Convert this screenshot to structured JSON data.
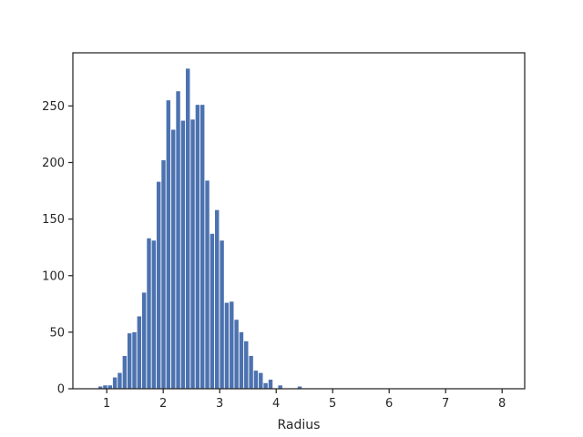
{
  "chart_data": {
    "type": "bar",
    "title": "",
    "xlabel": "Radius",
    "ylabel": "",
    "xlim": [
      0.4,
      8.4
    ],
    "ylim": [
      0,
      297
    ],
    "xticks": [
      1,
      2,
      3,
      4,
      5,
      6,
      7,
      8
    ],
    "yticks": [
      0,
      50,
      100,
      150,
      200,
      250
    ],
    "grid": false,
    "bar_color": "#4c72b0",
    "bin_width": 0.0861,
    "bins_left_edges": [
      0.85,
      0.936,
      1.022,
      1.108,
      1.194,
      1.281,
      1.367,
      1.453,
      1.539,
      1.625,
      1.711,
      1.797,
      1.883,
      1.969,
      2.055,
      2.142,
      2.228,
      2.314,
      2.4,
      2.486,
      2.572,
      2.658,
      2.744,
      2.83,
      2.916,
      3.003,
      3.089,
      3.175,
      3.261,
      3.347,
      3.433,
      3.519,
      3.605,
      3.691,
      3.777,
      3.864,
      3.95,
      4.036,
      4.122,
      4.208,
      4.294,
      4.38,
      4.466,
      4.552,
      4.638,
      4.725,
      4.811,
      4.897,
      4.983
    ],
    "values": [
      2,
      3,
      3,
      10,
      14,
      29,
      49,
      50,
      64,
      85,
      133,
      131,
      183,
      202,
      255,
      229,
      263,
      237,
      283,
      238,
      251,
      251,
      184,
      137,
      158,
      131,
      76,
      77,
      61,
      50,
      42,
      29,
      16,
      14,
      5,
      8,
      0,
      3,
      0,
      0,
      0,
      2,
      0,
      0,
      0,
      0,
      0,
      0,
      0
    ]
  }
}
